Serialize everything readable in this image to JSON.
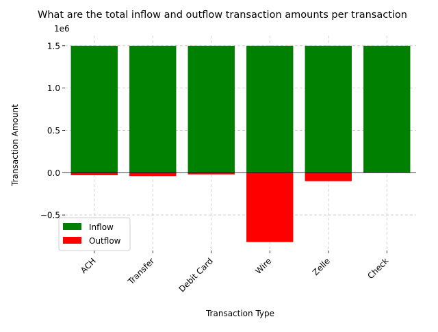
{
  "chart_data": {
    "type": "bar",
    "title": "What are the total inflow and outflow transaction amounts per transaction",
    "xlabel": "Transaction Type",
    "ylabel": "Transaction Amount",
    "offset_label": "1e6",
    "categories": [
      "ACH",
      "Transfer",
      "Debit Card",
      "Wire",
      "Zelle",
      "Check"
    ],
    "series": [
      {
        "name": "Inflow",
        "color": "#008000",
        "values": [
          1500000,
          1500000,
          1500000,
          1500000,
          1500000,
          1500000
        ]
      },
      {
        "name": "Outflow",
        "color": "#ff0000",
        "values": [
          -30000,
          -40000,
          -20000,
          -820000,
          -100000,
          0
        ]
      }
    ],
    "ylim": [
      -920000.0,
      1620000.0
    ],
    "yticks": [
      -500000,
      0,
      500000,
      1000000,
      1500000
    ],
    "ytick_labels": [
      "−0.5",
      "0.0",
      "0.5",
      "1.0",
      "1.5"
    ],
    "grid": true,
    "legend_position": "lower-left",
    "stacked_about_zero": true
  }
}
